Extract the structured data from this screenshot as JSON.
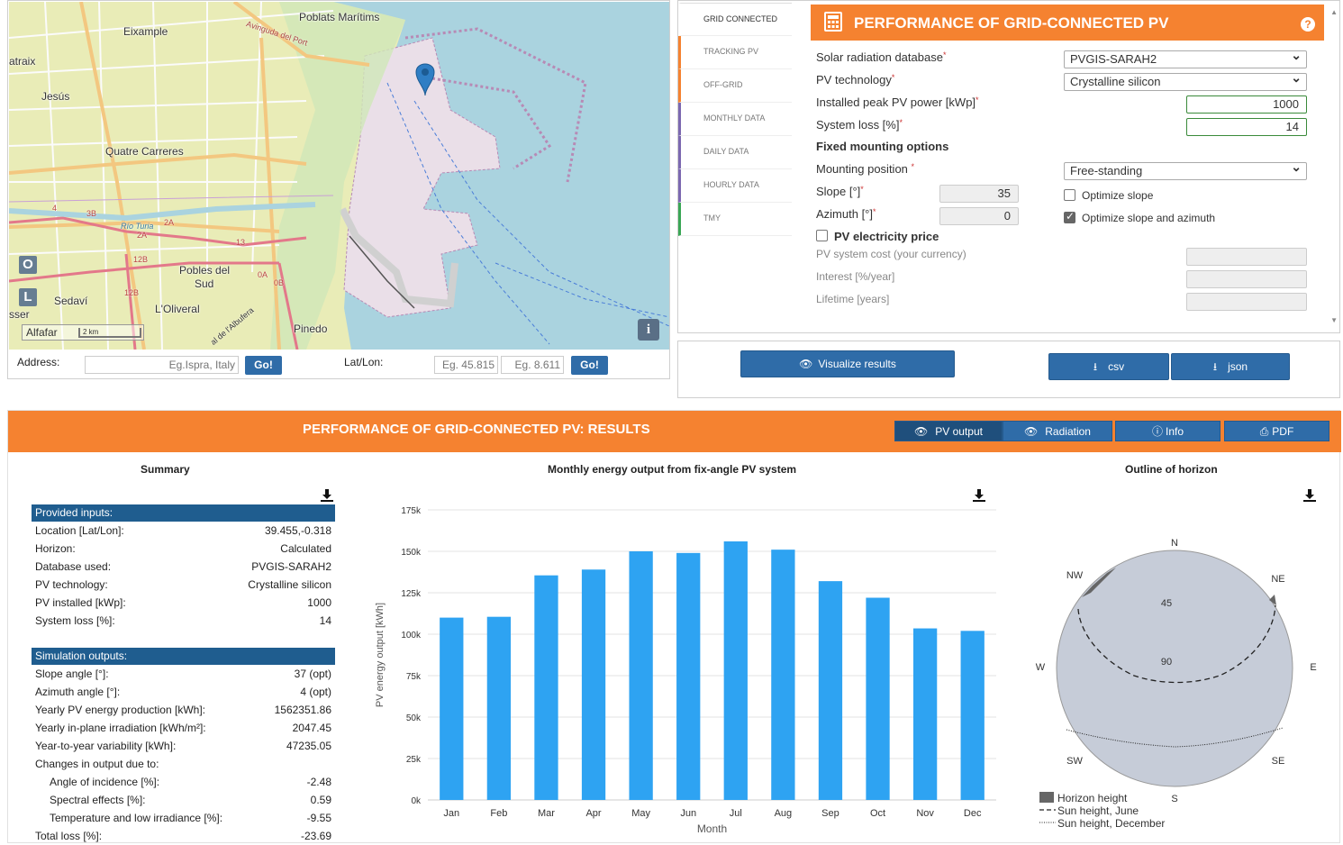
{
  "map": {
    "labels": {
      "poblats": "Poblats Marítims",
      "eixample": "Eixample",
      "avinguda": "Avinguda del Port",
      "atraix": "atraix",
      "jesus": "Jesús",
      "quatre": "Quatre Carreres",
      "rio": "Río Turia",
      "pobles": "Pobles del",
      "sud": "Sud",
      "sedavi": "Sedaví",
      "oliveral": "L'Oliveral",
      "pinedo": "Pinedo",
      "sser": "sser",
      "albufera": "al de l'Albufera",
      "r4": "4",
      "r3b": "3B",
      "r2a": "2A",
      "r2a2": "2A",
      "r12b": "12B",
      "r12b2": "12B",
      "r0a": "0A",
      "r0b": "0B",
      "r13": "13"
    },
    "btn_o": "O",
    "btn_l": "L",
    "scale_town": "Alfafar",
    "scale_km": "2 km",
    "info": "i"
  },
  "address": {
    "label": "Address:",
    "placeholder": "Eg.Ispra, Italy",
    "go": "Go!",
    "latlon_label": "Lat/Lon:",
    "lat_placeholder": "Eg. 45.815",
    "lon_placeholder": "Eg. 8.611",
    "go2": "Go!"
  },
  "tabs": [
    {
      "label": "GRID CONNECTED",
      "color": "#ffffff"
    },
    {
      "label": "TRACKING PV",
      "color": "#f58230"
    },
    {
      "label": "OFF-GRID",
      "color": "#f58230"
    },
    {
      "label": "MONTHLY DATA",
      "color": "#7b68b0"
    },
    {
      "label": "DAILY DATA",
      "color": "#7b68b0"
    },
    {
      "label": "HOURLY DATA",
      "color": "#7b68b0"
    },
    {
      "label": "TMY",
      "color": "#3aa655"
    }
  ],
  "form": {
    "title": "PERFORMANCE OF GRID-CONNECTED PV",
    "help": "?",
    "radiation_db_label": "Solar radiation database",
    "radiation_db_value": "PVGIS-SARAH2",
    "pv_tech_label": "PV technology",
    "pv_tech_value": "Crystalline silicon",
    "peak_power_label": "Installed peak PV power [kWp]",
    "peak_power_value": "1000",
    "system_loss_label": "System loss [%]",
    "system_loss_value": "14",
    "fixed_mounting": "Fixed mounting options",
    "mounting_pos_label": "Mounting position",
    "mounting_pos_value": "Free-standing",
    "slope_label": "Slope [°]",
    "slope_value": "35",
    "azimuth_label": "Azimuth [°]",
    "azimuth_value": "0",
    "optimize_slope": "Optimize slope",
    "optimize_slope_azimuth": "Optimize slope and azimuth",
    "electricity_price": "PV electricity price",
    "system_cost": "PV system cost (your currency)",
    "interest": "Interest [%/year]",
    "lifetime": "Lifetime [years]",
    "req": "*"
  },
  "actions": {
    "visualize": "Visualize results",
    "csv": "csv",
    "json": "json"
  },
  "results": {
    "title": "PERFORMANCE OF GRID-CONNECTED PV: RESULTS",
    "tabs": {
      "pv_output": "PV output",
      "radiation": "Radiation",
      "info": "Info",
      "pdf": "PDF"
    },
    "summary_title": "Summary",
    "chart_title": "Monthly energy output from fix-angle PV system",
    "horizon_title": "Outline of horizon",
    "inputs_head": "Provided inputs:",
    "inputs": [
      {
        "k": "Location [Lat/Lon]:",
        "v": "39.455,-0.318"
      },
      {
        "k": "Horizon:",
        "v": "Calculated"
      },
      {
        "k": "Database used:",
        "v": "PVGIS-SARAH2"
      },
      {
        "k": "PV technology:",
        "v": "Crystalline silicon"
      },
      {
        "k": "PV installed [kWp]:",
        "v": "1000"
      },
      {
        "k": "System loss [%]:",
        "v": "14"
      }
    ],
    "outputs_head": "Simulation outputs:",
    "outputs": [
      {
        "k": "Slope angle [°]:",
        "v": "37 (opt)"
      },
      {
        "k": "Azimuth angle [°]:",
        "v": "4 (opt)"
      },
      {
        "k": "Yearly PV energy production [kWh]:",
        "v": "1562351.86"
      },
      {
        "k": "Yearly in-plane irradiation [kWh/m²]:",
        "v": "2047.45"
      },
      {
        "k": "Year-to-year variability [kWh]:",
        "v": "47235.05"
      },
      {
        "k": "Changes in output due to:",
        "v": ""
      },
      {
        "k": "Angle of incidence [%]:",
        "v": "-2.48"
      },
      {
        "k": "Spectral effects [%]:",
        "v": "0.59"
      },
      {
        "k": "Temperature and low irradiance [%]:",
        "v": "-9.55"
      },
      {
        "k": "Total loss [%]:",
        "v": "-23.69"
      }
    ],
    "horizon": {
      "n": "N",
      "ne": "NE",
      "e": "E",
      "se": "SE",
      "s": "S",
      "sw": "SW",
      "w": "W",
      "nw": "NW",
      "r45": "45",
      "r90": "90",
      "legend_horizon": "Horizon height",
      "legend_june": "Sun height, June",
      "legend_dec": "Sun height, December"
    }
  },
  "chart_data": {
    "type": "bar",
    "title": "Monthly energy output from fix-angle PV system",
    "xlabel": "Month",
    "ylabel": "PV energy output [kWh]",
    "categories": [
      "Jan",
      "Feb",
      "Mar",
      "Apr",
      "May",
      "Jun",
      "Jul",
      "Aug",
      "Sep",
      "Oct",
      "Nov",
      "Dec"
    ],
    "values": [
      110000,
      110500,
      135500,
      139000,
      150000,
      149000,
      156000,
      151000,
      132000,
      122000,
      103500,
      102000
    ],
    "ylim": [
      0,
      175000
    ],
    "yticks": [
      0,
      25000,
      50000,
      75000,
      100000,
      125000,
      150000,
      175000
    ],
    "ytick_labels": [
      "0k",
      "25k",
      "50k",
      "75k",
      "100k",
      "125k",
      "150k",
      "175k"
    ],
    "color": "#2ea3f2",
    "grid": true
  },
  "colors": {
    "orange": "#f58230",
    "blue": "#2f6ca8",
    "navy": "#1f5d8f",
    "bar": "#2ea3f2"
  }
}
